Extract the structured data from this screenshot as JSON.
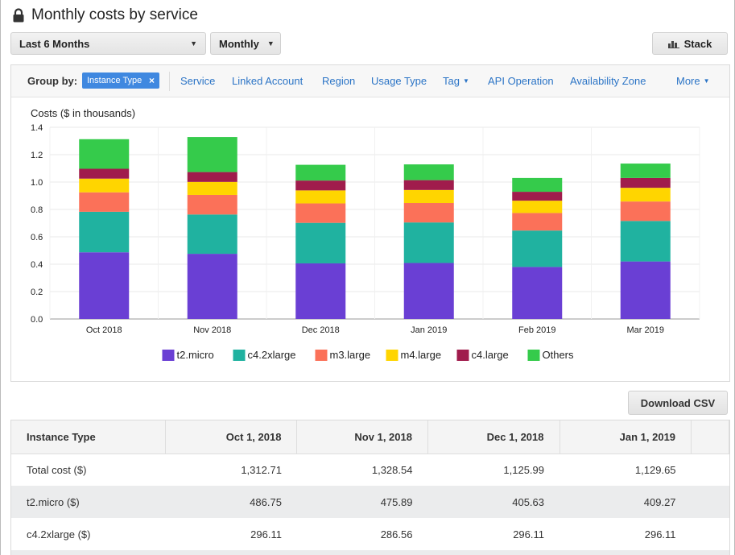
{
  "header": {
    "title": "Monthly costs by service",
    "icon": "lock-icon"
  },
  "controls": {
    "date_range": "Last 6 Months",
    "granularity": "Monthly",
    "chart_style": "Stack"
  },
  "group_by": {
    "label": "Group by:",
    "selected": "Instance Type",
    "options": [
      "Service",
      "Linked Account",
      "Region",
      "Usage Type",
      "Tag",
      "API Operation",
      "Availability Zone",
      "More"
    ]
  },
  "chart_data": {
    "type": "bar",
    "stacked": true,
    "ylabel": "Costs ($ in thousands)",
    "ylim": [
      0,
      1.4
    ],
    "yticks": [
      "0.0",
      "0.2",
      "0.4",
      "0.6",
      "0.8",
      "1.0",
      "1.2",
      "1.4"
    ],
    "categories": [
      "Oct 2018",
      "Nov 2018",
      "Dec 2018",
      "Jan 2019",
      "Feb 2019",
      "Mar 2019"
    ],
    "series": [
      {
        "name": "t2.micro",
        "color": "#6a3fd4",
        "values": [
          0.487,
          0.476,
          0.406,
          0.409,
          0.38,
          0.42
        ]
      },
      {
        "name": "c4.2xlarge",
        "color": "#20b2a0",
        "values": [
          0.296,
          0.287,
          0.296,
          0.296,
          0.266,
          0.296
        ]
      },
      {
        "name": "m3.large",
        "color": "#fb7159",
        "values": [
          0.142,
          0.143,
          0.142,
          0.142,
          0.128,
          0.142
        ]
      },
      {
        "name": "m4.large",
        "color": "#ffd500",
        "values": [
          0.1,
          0.095,
          0.095,
          0.095,
          0.09,
          0.1
        ]
      },
      {
        "name": "c4.large",
        "color": "#a01c4c",
        "values": [
          0.072,
          0.072,
          0.072,
          0.072,
          0.065,
          0.072
        ]
      },
      {
        "name": "Others",
        "color": "#35cb4b",
        "values": [
          0.216,
          0.256,
          0.115,
          0.115,
          0.101,
          0.105
        ]
      }
    ],
    "legend_position": "bottom",
    "grid": true
  },
  "download_label": "Download CSV",
  "table": {
    "headers": [
      "Instance Type",
      "Oct 1, 2018",
      "Nov 1, 2018",
      "Dec 1, 2018",
      "Jan 1, 2019"
    ],
    "rows": [
      [
        "Total cost ($)",
        "1,312.71",
        "1,328.54",
        "1,125.99",
        "1,129.65"
      ],
      [
        "t2.micro ($)",
        "486.75",
        "475.89",
        "405.63",
        "409.27"
      ],
      [
        "c4.2xlarge ($)",
        "296.11",
        "286.56",
        "296.11",
        "296.11"
      ]
    ]
  }
}
